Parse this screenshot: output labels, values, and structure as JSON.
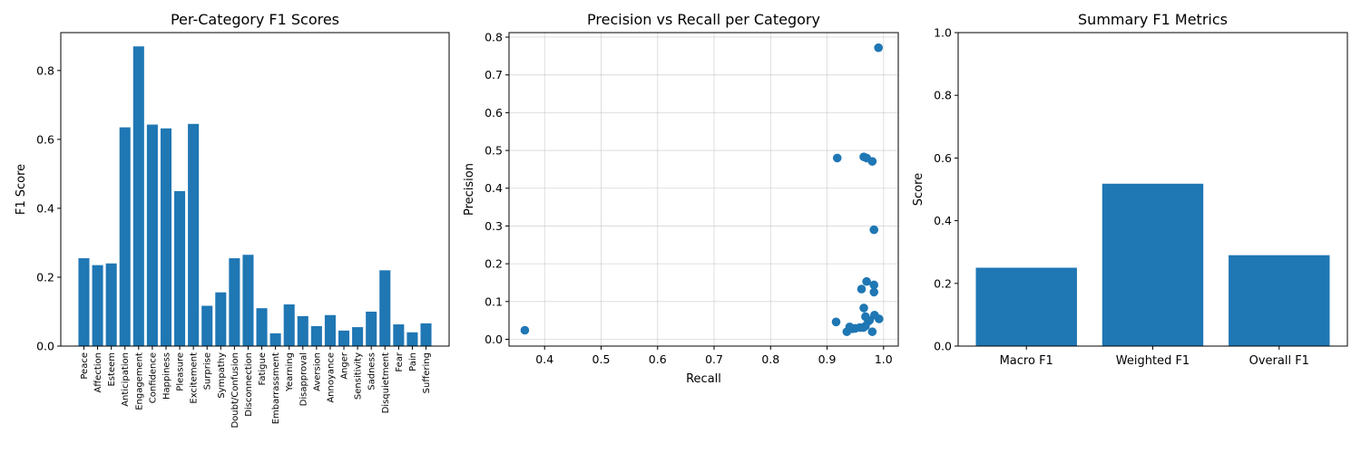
{
  "chart_data": [
    {
      "type": "bar",
      "title": "Per-Category F1 Scores",
      "xlabel": "",
      "ylabel": "F1 Score",
      "ylim": [
        0,
        0.91
      ],
      "yticks": [
        "0.0",
        "0.2",
        "0.4",
        "0.6",
        "0.8"
      ],
      "color": "#1f77b4",
      "categories": [
        "Peace",
        "Affection",
        "Esteem",
        "Anticipation",
        "Engagement",
        "Confidence",
        "Happiness",
        "Pleasure",
        "Excitement",
        "Surprise",
        "Sympathy",
        "Doubt/Confusion",
        "Disconnection",
        "Fatigue",
        "Embarrassment",
        "Yearning",
        "Disapproval",
        "Aversion",
        "Annoyance",
        "Anger",
        "Sensitivity",
        "Sadness",
        "Disquietment",
        "Fear",
        "Pain",
        "Suffering"
      ],
      "values": [
        0.255,
        0.235,
        0.24,
        0.635,
        0.87,
        0.643,
        0.632,
        0.45,
        0.645,
        0.117,
        0.156,
        0.255,
        0.265,
        0.11,
        0.037,
        0.121,
        0.087,
        0.058,
        0.09,
        0.045,
        0.055,
        0.1,
        0.22,
        0.063,
        0.04,
        0.066
      ]
    },
    {
      "type": "scatter",
      "title": "Precision vs Recall per Category",
      "xlabel": "Recall",
      "ylabel": "Precision",
      "xlim": [
        0.337,
        1.026
      ],
      "ylim": [
        -0.018,
        0.812
      ],
      "xticks": [
        "0.4",
        "0.5",
        "0.6",
        "0.7",
        "0.8",
        "0.9",
        "1.0"
      ],
      "yticks": [
        "0.0",
        "0.1",
        "0.2",
        "0.3",
        "0.4",
        "0.5",
        "0.6",
        "0.7",
        "0.8"
      ],
      "grid": true,
      "color": "#1f77b4",
      "points": [
        {
          "x": 0.365,
          "y": 0.024
        },
        {
          "x": 0.918,
          "y": 0.48
        },
        {
          "x": 0.965,
          "y": 0.483
        },
        {
          "x": 0.97,
          "y": 0.48
        },
        {
          "x": 0.98,
          "y": 0.471
        },
        {
          "x": 0.991,
          "y": 0.772
        },
        {
          "x": 0.983,
          "y": 0.29
        },
        {
          "x": 0.97,
          "y": 0.153
        },
        {
          "x": 0.983,
          "y": 0.144
        },
        {
          "x": 0.983,
          "y": 0.125
        },
        {
          "x": 0.961,
          "y": 0.133
        },
        {
          "x": 0.965,
          "y": 0.083
        },
        {
          "x": 0.916,
          "y": 0.046
        },
        {
          "x": 0.968,
          "y": 0.06
        },
        {
          "x": 0.984,
          "y": 0.064
        },
        {
          "x": 0.992,
          "y": 0.054
        },
        {
          "x": 0.973,
          "y": 0.048
        },
        {
          "x": 0.94,
          "y": 0.033
        },
        {
          "x": 0.95,
          "y": 0.029
        },
        {
          "x": 0.958,
          "y": 0.031
        },
        {
          "x": 0.964,
          "y": 0.031
        },
        {
          "x": 0.935,
          "y": 0.02
        },
        {
          "x": 0.98,
          "y": 0.02
        },
        {
          "x": 0.945,
          "y": 0.028
        },
        {
          "x": 0.975,
          "y": 0.05
        },
        {
          "x": 0.968,
          "y": 0.035
        }
      ]
    },
    {
      "type": "bar",
      "title": "Summary F1 Metrics",
      "xlabel": "",
      "ylabel": "Score",
      "ylim": [
        0,
        1.0
      ],
      "yticks": [
        "0.0",
        "0.2",
        "0.4",
        "0.6",
        "0.8",
        "1.0"
      ],
      "color": "#1f77b4",
      "categories": [
        "Macro F1",
        "Weighted F1",
        "Overall F1"
      ],
      "values": [
        0.25,
        0.518,
        0.29
      ]
    }
  ]
}
